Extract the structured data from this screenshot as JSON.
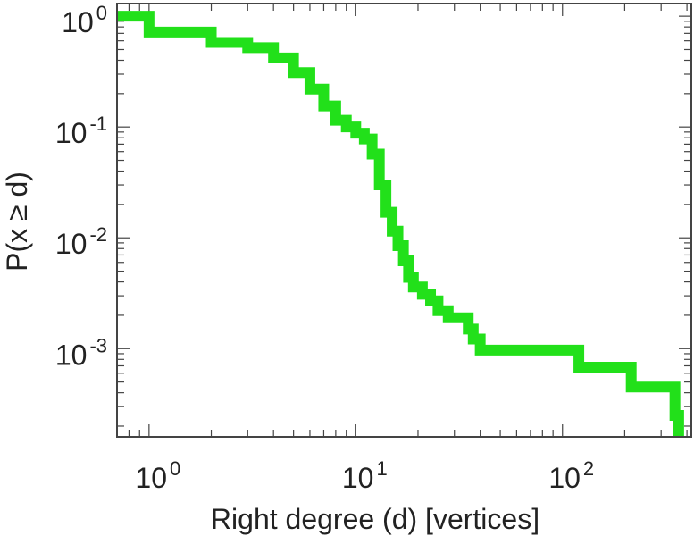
{
  "chart_data": {
    "type": "line",
    "xlabel": "Right degree (d) [vertices]",
    "ylabel": "P(x ≥ d)",
    "x_scale": "log",
    "y_scale": "log",
    "xlim": [
      0.7,
      420
    ],
    "ylim": [
      0.00016,
      1.3
    ],
    "grid": false,
    "x_ticks": [
      {
        "value": 1,
        "base": "10",
        "exp": "0"
      },
      {
        "value": 10,
        "base": "10",
        "exp": "1"
      },
      {
        "value": 100,
        "base": "10",
        "exp": "2"
      }
    ],
    "y_ticks": [
      {
        "value": 1,
        "base": "10",
        "exp": "0"
      },
      {
        "value": 0.1,
        "base": "10",
        "exp": "-1"
      },
      {
        "value": 0.01,
        "base": "10",
        "exp": "-2"
      },
      {
        "value": 0.001,
        "base": "10",
        "exp": "-3"
      }
    ],
    "series": [
      {
        "color": "#22e01a",
        "points": [
          [
            0.7,
            1.0
          ],
          [
            1,
            1.0
          ],
          [
            1,
            0.72
          ],
          [
            2,
            0.72
          ],
          [
            2,
            0.58
          ],
          [
            3,
            0.58
          ],
          [
            3,
            0.52
          ],
          [
            4,
            0.52
          ],
          [
            4,
            0.42
          ],
          [
            5,
            0.42
          ],
          [
            5,
            0.31
          ],
          [
            6,
            0.31
          ],
          [
            6,
            0.22
          ],
          [
            7,
            0.22
          ],
          [
            7,
            0.155
          ],
          [
            8,
            0.155
          ],
          [
            8,
            0.115
          ],
          [
            9,
            0.115
          ],
          [
            9,
            0.1
          ],
          [
            10,
            0.1
          ],
          [
            10,
            0.088
          ],
          [
            11,
            0.088
          ],
          [
            11,
            0.078
          ],
          [
            12,
            0.078
          ],
          [
            12,
            0.057
          ],
          [
            13,
            0.057
          ],
          [
            13,
            0.03
          ],
          [
            14,
            0.03
          ],
          [
            14,
            0.017
          ],
          [
            15,
            0.017
          ],
          [
            15,
            0.0115
          ],
          [
            16,
            0.0115
          ],
          [
            16,
            0.0085
          ],
          [
            17,
            0.0085
          ],
          [
            17,
            0.0062
          ],
          [
            18,
            0.0062
          ],
          [
            18,
            0.0044
          ],
          [
            19,
            0.0044
          ],
          [
            19,
            0.0036
          ],
          [
            21,
            0.0036
          ],
          [
            21,
            0.0031
          ],
          [
            23,
            0.0031
          ],
          [
            23,
            0.0027
          ],
          [
            25,
            0.0027
          ],
          [
            25,
            0.0022
          ],
          [
            28,
            0.0022
          ],
          [
            28,
            0.0019
          ],
          [
            35,
            0.0019
          ],
          [
            35,
            0.0015
          ],
          [
            37,
            0.0015
          ],
          [
            37,
            0.00122
          ],
          [
            40,
            0.00122
          ],
          [
            40,
            0.00097
          ],
          [
            120,
            0.00097
          ],
          [
            120,
            0.00068
          ],
          [
            215,
            0.00068
          ],
          [
            215,
            0.00045
          ],
          [
            350,
            0.00045
          ],
          [
            350,
            0.00025
          ],
          [
            365,
            0.00025
          ],
          [
            365,
            0.00016
          ]
        ]
      }
    ]
  }
}
